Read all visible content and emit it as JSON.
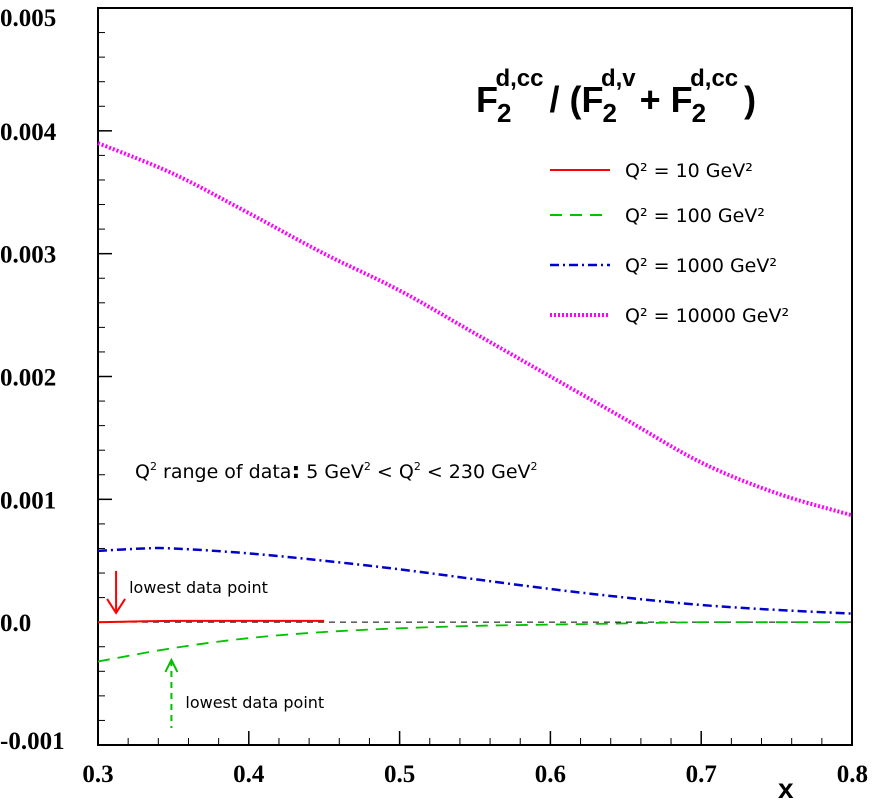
{
  "chart_data": {
    "type": "line",
    "title": {
      "parts": [
        "F",
        "2",
        "d,cc",
        "/ (F",
        "2",
        "d,v",
        "+ F",
        "2",
        "d,cc",
        ")"
      ]
    },
    "xlabel": "x",
    "ylabel": "",
    "xlim": [
      0.3,
      0.8
    ],
    "ylim": [
      -0.001,
      0.005
    ],
    "x_ticks": [
      "0.3",
      "0.4",
      "0.5",
      "0.6",
      "0.7",
      "0.8"
    ],
    "y_ticks": [
      "-0.001",
      "0.0",
      "0.001",
      "0.002",
      "0.003",
      "0.004",
      "0.005"
    ],
    "x_tick_values": [
      0.3,
      0.4,
      0.5,
      0.6,
      0.7,
      0.8
    ],
    "y_tick_values": [
      -0.001,
      0.0,
      0.001,
      0.002,
      0.003,
      0.004,
      0.005
    ],
    "grid": false,
    "legend_position": "top-right",
    "zero_line": {
      "y": 0.0,
      "style": "dashed",
      "color": "#000000"
    },
    "series": [
      {
        "name": "Q² = 10 GeV²",
        "color": "#ff0000",
        "style": "solid",
        "x": [
          0.3,
          0.35,
          0.4,
          0.45
        ],
        "y": [
          0.0,
          1e-05,
          1e-05,
          1e-05
        ]
      },
      {
        "name": "Q² = 100 GeV²",
        "color": "#00c000",
        "style": "dashed",
        "x": [
          0.3,
          0.35,
          0.4,
          0.45,
          0.5,
          0.55,
          0.6,
          0.65,
          0.7,
          0.75,
          0.8
        ],
        "y": [
          -0.00032,
          -0.00021,
          -0.00013,
          -8e-05,
          -5e-05,
          -3e-05,
          -2e-05,
          -1e-05,
          0.0,
          0.0,
          0.0
        ]
      },
      {
        "name": "Q² = 1000 GeV²",
        "color": "#0000cc",
        "style": "dashdot",
        "x": [
          0.3,
          0.33,
          0.35,
          0.4,
          0.45,
          0.5,
          0.55,
          0.6,
          0.65,
          0.7,
          0.75,
          0.8
        ],
        "y": [
          0.00058,
          0.0006,
          0.0006,
          0.00056,
          0.0005,
          0.00043,
          0.00035,
          0.00027,
          0.0002,
          0.00014,
          0.0001,
          7e-05
        ]
      },
      {
        "name": "Q² = 10000 GeV²",
        "color": "#ff00ff",
        "style": "dotted",
        "x": [
          0.3,
          0.35,
          0.4,
          0.45,
          0.5,
          0.55,
          0.6,
          0.65,
          0.7,
          0.75,
          0.8
        ],
        "y": [
          0.0039,
          0.00365,
          0.00333,
          0.003,
          0.0027,
          0.00235,
          0.002,
          0.00165,
          0.0013,
          0.00105,
          0.00087
        ]
      }
    ],
    "annotations": [
      {
        "text": "lowest data point",
        "color": "#ff0000",
        "arrow": "down-solid",
        "x": 0.31,
        "y": 1e-05
      },
      {
        "text": "lowest data point",
        "color": "#00c000",
        "arrow": "up-dashed",
        "x": 0.35,
        "y": -0.00021
      }
    ],
    "range_note": {
      "parts": [
        "Q",
        "2",
        " range of data",
        ":",
        " 5 GeV",
        "2",
        " < Q",
        "2",
        " < 230 GeV",
        "2"
      ]
    }
  }
}
